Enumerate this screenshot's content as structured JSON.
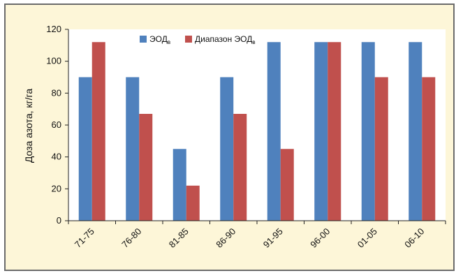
{
  "chart_data": {
    "type": "bar",
    "categories": [
      "71-75",
      "76-80",
      "81-85",
      "86-90",
      "91-95",
      "96-00",
      "01-05",
      "06-10"
    ],
    "series": [
      {
        "name": "ЭОД",
        "name_sub": "в",
        "color": "#4f81bd",
        "values": [
          90,
          90,
          45,
          90,
          112,
          112,
          112,
          112
        ]
      },
      {
        "name": "Диапазон ЭОД",
        "name_sub": "в",
        "color": "#c0504d",
        "values": [
          112,
          67,
          22,
          67,
          45,
          112,
          90,
          90
        ]
      }
    ],
    "ylabel": "Доза азота, кг/га",
    "ylim": [
      0,
      120
    ],
    "yticks": [
      "0",
      "20",
      "40",
      "60",
      "80",
      "100",
      "120"
    ],
    "legend_position": "top-center",
    "grid": false
  }
}
